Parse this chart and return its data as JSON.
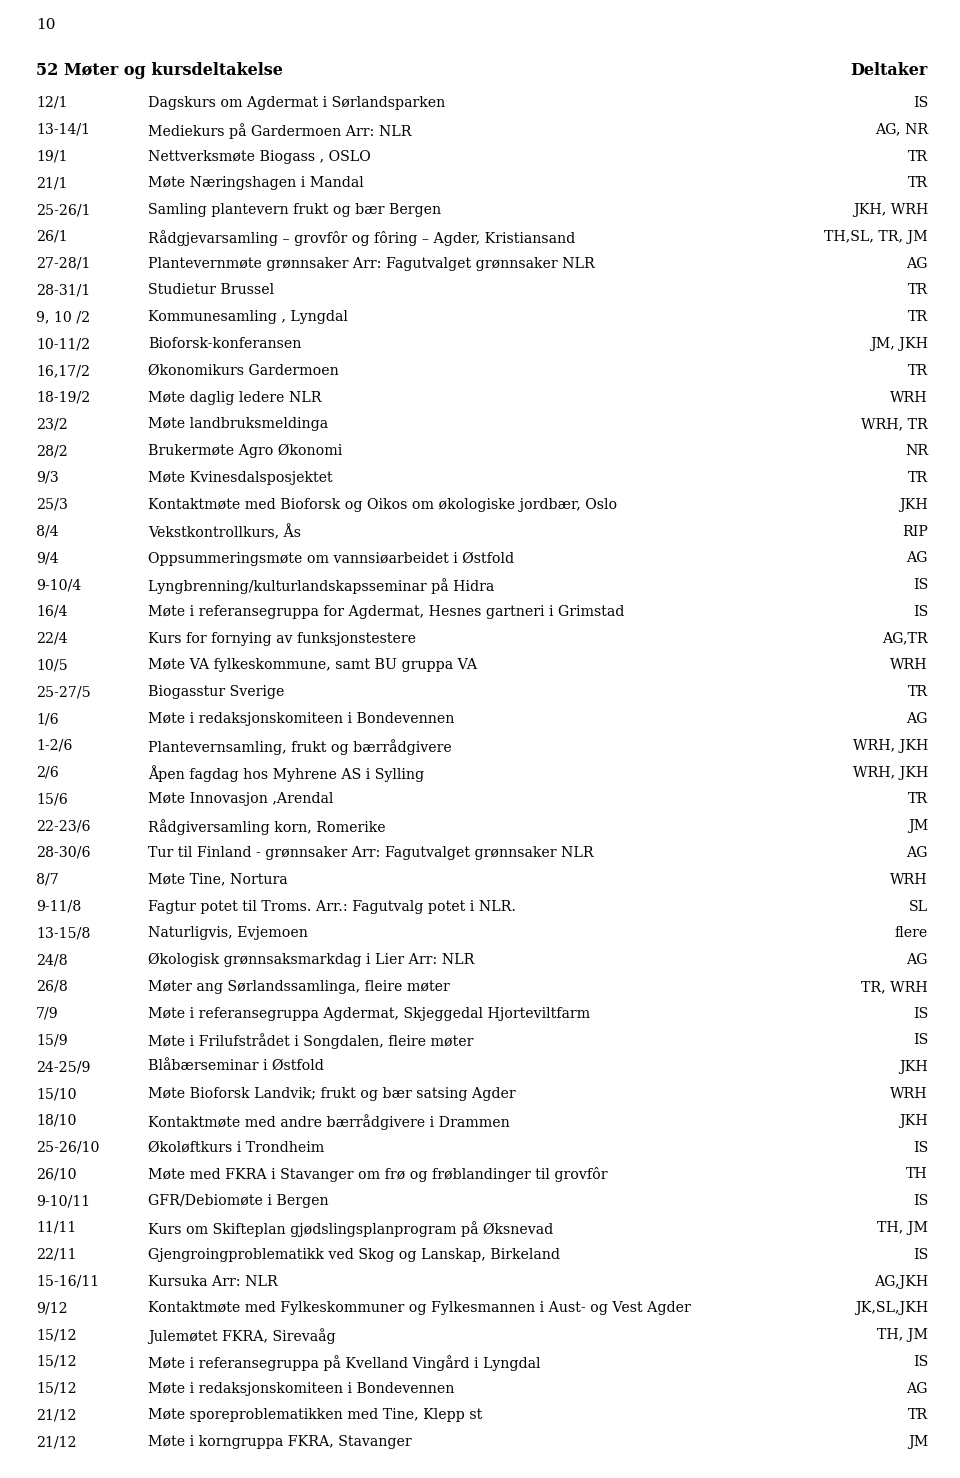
{
  "page_number": "10",
  "title_left": "52 Møter og kursdeltakelse",
  "title_right": "Deltaker",
  "rows": [
    [
      "12/1",
      "Dagskurs om Agdermat i Sørlandsparken",
      "IS"
    ],
    [
      "13-14/1",
      "Mediekurs på Gardermoen Arr: NLR",
      "AG, NR"
    ],
    [
      "19/1",
      "Nettverksmøte Biogass , OSLO",
      "TR"
    ],
    [
      "21/1",
      "Møte Næringshagen i Mandal",
      "TR"
    ],
    [
      "25-26/1",
      "Samling plantevern frukt og bær Bergen",
      "JKH, WRH"
    ],
    [
      "26/1",
      "Rådgjevarsamling – grovfôr og fôring – Agder, Kristiansand",
      "TH,SL, TR, JM"
    ],
    [
      "27-28/1",
      "Plantevernmøte grønnsaker Arr: Fagutvalget grønnsaker NLR",
      "AG"
    ],
    [
      "28-31/1",
      "Studietur Brussel",
      "TR"
    ],
    [
      "9, 10 /2",
      "Kommunesamling , Lyngdal",
      "TR"
    ],
    [
      "10-11/2",
      "Bioforsk-konferansen",
      "JM, JKH"
    ],
    [
      "16,17/2",
      "Økonomikurs Gardermoen",
      "TR"
    ],
    [
      "18-19/2",
      "Møte daglig ledere NLR",
      "WRH"
    ],
    [
      "23/2",
      "Møte landbruksmeldinga",
      "WRH, TR"
    ],
    [
      "28/2",
      "Brukermøte Agro Økonomi",
      "NR"
    ],
    [
      "9/3",
      "Møte Kvinesdalsposjektet",
      "TR"
    ],
    [
      "25/3",
      "Kontaktmøte med Bioforsk og Oikos om økologiske jordbær, Oslo",
      "JKH"
    ],
    [
      "8/4",
      "Vekstkontrollkurs, Ås",
      "RIP"
    ],
    [
      "9/4",
      "Oppsummeringsmøte om vannsiøarbeidet i Østfold",
      "AG"
    ],
    [
      "9-10/4",
      "Lyngbrenning/kulturlandskapsseminar på Hidra",
      "IS"
    ],
    [
      "16/4",
      "Møte i referansegruppa for Agdermat, Hesnes gartneri i Grimstad",
      "IS"
    ],
    [
      "22/4",
      "Kurs for fornying av funksjonstestere",
      "AG,TR"
    ],
    [
      "10/5",
      "Møte VA fylkeskommune, samt BU gruppa VA",
      "WRH"
    ],
    [
      "25-27/5",
      "Biogasstur Sverige",
      "TR"
    ],
    [
      "1/6",
      "Møte i redaksjonskomiteen i Bondevennen",
      "AG"
    ],
    [
      "1-2/6",
      "Plantevernsamling, frukt og bærrådgivere",
      "WRH, JKH"
    ],
    [
      "2/6",
      "Åpen fagdag hos Myhrene AS i Sylling",
      "WRH, JKH"
    ],
    [
      "15/6",
      "Møte Innovasjon ,Arendal",
      "TR"
    ],
    [
      "22-23/6",
      "Rådgiversamling korn, Romerike",
      "JM"
    ],
    [
      "28-30/6",
      "Tur til Finland - grønnsaker Arr: Fagutvalget grønnsaker NLR",
      "AG"
    ],
    [
      "8/7",
      "Møte Tine, Nortura",
      "WRH"
    ],
    [
      "9-11/8",
      "Fagtur potet til Troms. Arr.: Fagutvalg potet i NLR.",
      "SL"
    ],
    [
      "13-15/8",
      "Naturligvis, Evjemoen",
      "flere"
    ],
    [
      "24/8",
      "Økologisk grønnsaksmarkdag i Lier Arr: NLR",
      "AG"
    ],
    [
      "26/8",
      "Møter ang Sørlandssamlinga, fleire møter",
      "TR, WRH"
    ],
    [
      "7/9",
      "Møte i referansegruppa Agdermat, Skjeggedal Hjorteviltfarm",
      "IS"
    ],
    [
      "15/9",
      "Møte i Frilufstrådet i Songdalen, fleire møter",
      "IS"
    ],
    [
      "24-25/9",
      "Blåbærseminar i Østfold",
      "JKH"
    ],
    [
      "15/10",
      "Møte Bioforsk Landvik; frukt og bær satsing Agder",
      "WRH"
    ],
    [
      "18/10",
      "Kontaktmøte med andre bærrådgivere i Drammen",
      "JKH"
    ],
    [
      "25-26/10",
      "Økoløftkurs i Trondheim",
      "IS"
    ],
    [
      "26/10",
      "Møte med FKRA i Stavanger om frø og frøblandinger til grovfôr",
      "TH"
    ],
    [
      "9-10/11",
      "GFR/Debiomøte i Bergen",
      "IS"
    ],
    [
      "11/11",
      "Kurs om Skifteplan gjødslingsplanprogram på Øksnevad",
      "TH, JM"
    ],
    [
      "22/11",
      "Gjengroingproblematikk ved Skog og Lanskap, Birkeland",
      "IS"
    ],
    [
      "15-16/11",
      "Kursuka Arr: NLR",
      "AG,JKH"
    ],
    [
      "9/12",
      "Kontaktmøte med Fylkeskommuner og Fylkesmannen i Aust- og Vest Agder",
      "JK,SL,JKH"
    ],
    [
      "15/12",
      "Julemøtet FKRA, Sirevaåg",
      "TH, JM"
    ],
    [
      "15/12",
      "Møte i referansegruppa på Kvelland Vingård i Lyngdal",
      "IS"
    ],
    [
      "15/12",
      "Møte i redaksjonskomiteen i Bondevennen",
      "AG"
    ],
    [
      "21/12",
      "Møte sporeproblematikken med Tine, Klepp st",
      "TR"
    ],
    [
      "21/12",
      "Møte i korngruppa FKRA, Stavanger",
      "JM"
    ]
  ],
  "bg_color": "#ffffff",
  "text_color": "#000000",
  "title_fontsize": 11.5,
  "body_fontsize": 10.2,
  "page_num_fontsize": 11
}
